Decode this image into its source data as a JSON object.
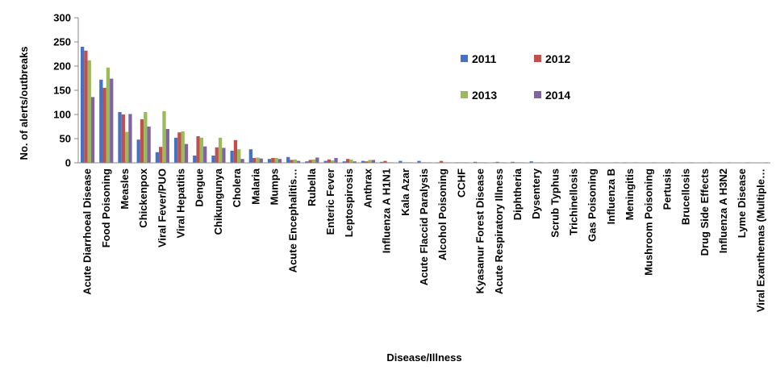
{
  "chart_data": {
    "type": "bar",
    "title": "",
    "xlabel": "Disease/Illness",
    "ylabel": "No. of alerts/outbreaks",
    "ylim": [
      0,
      300
    ],
    "yticks": [
      0,
      50,
      100,
      150,
      200,
      250,
      300
    ],
    "grid": false,
    "legend_position": "top-right",
    "categories": [
      "Acute Diarrhoeal Disease",
      "Food Poisoning",
      "Measles",
      "Chickenpox",
      "Viral Fever/PUO",
      "Viral Hepatitis",
      "Dengue",
      "Chikungunya",
      "Cholera",
      "Malaria",
      "Mumps",
      "Acute Encephalitis…",
      "Rubella",
      "Enteric Fever",
      "Leptospirosis",
      "Anthrax",
      "Influenza A H1N1",
      "Kala Azar",
      "Acute Flaccid Paralysis",
      "Alcohol Poisoning",
      "CCHF",
      "Kyasanur Forest Disease",
      "Acute Respiratory Illness",
      "Diphtheria",
      "Dysentery",
      "Scrub Typhus",
      "Trichinellosis",
      "Gas Poisoning",
      "Influenza B",
      "Meningitis",
      "Mushroom Poisoning",
      "Pertusis",
      "Brucellosis",
      "Drug Side Effects",
      "Influenza A H3N2",
      "Lyme Disease",
      "Viral Exanthemas (Multiple…"
    ],
    "series": [
      {
        "name": "2011",
        "color": "#4472C4",
        "values": [
          240,
          172,
          105,
          48,
          22,
          52,
          15,
          15,
          25,
          28,
          8,
          12,
          3,
          4,
          3,
          4,
          2,
          4,
          4,
          1,
          1,
          2,
          1,
          2,
          3,
          1,
          0,
          1,
          0,
          1,
          0,
          0,
          0,
          0,
          0,
          0,
          0
        ]
      },
      {
        "name": "2012",
        "color": "#C0504D",
        "values": [
          232,
          155,
          100,
          90,
          33,
          63,
          55,
          32,
          47,
          10,
          10,
          6,
          6,
          7,
          8,
          3,
          4,
          1,
          1,
          4,
          1,
          1,
          2,
          1,
          0,
          1,
          1,
          0,
          0,
          0,
          0,
          0,
          0,
          0,
          0,
          0,
          0
        ]
      },
      {
        "name": "2013",
        "color": "#9BBB59",
        "values": [
          212,
          197,
          64,
          105,
          107,
          65,
          52,
          52,
          28,
          11,
          10,
          7,
          7,
          5,
          7,
          6,
          1,
          1,
          1,
          1,
          1,
          1,
          1,
          1,
          1,
          1,
          1,
          1,
          0,
          0,
          0,
          0,
          0,
          0,
          0,
          0,
          0
        ]
      },
      {
        "name": "2014",
        "color": "#8064A2",
        "values": [
          136,
          174,
          101,
          75,
          70,
          39,
          34,
          31,
          8,
          9,
          8,
          4,
          11,
          10,
          3,
          6,
          1,
          1,
          1,
          1,
          1,
          1,
          1,
          1,
          1,
          1,
          1,
          1,
          1,
          1,
          1,
          1,
          1,
          1,
          1,
          1,
          1
        ]
      }
    ]
  }
}
